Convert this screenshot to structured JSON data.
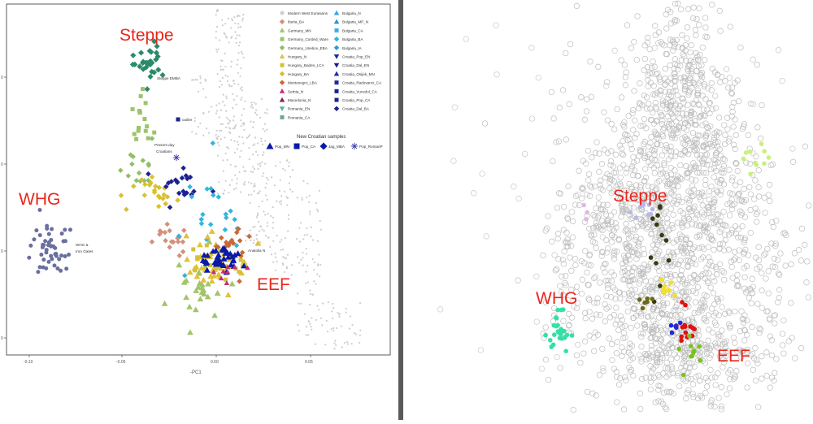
{
  "left_chart": {
    "group_labels": [
      {
        "text": "Steppe",
        "key": "steppe"
      },
      {
        "text": "WHG",
        "key": "whg"
      },
      {
        "text": "EEF",
        "key": "eef"
      }
    ],
    "annotations": [
      {
        "text": "Steppe EMBA",
        "key": "steppe_emba"
      },
      {
        "text": "outlier",
        "key": "outlier"
      },
      {
        "text": "Present day",
        "key": "present1"
      },
      {
        "text": "Croatians",
        "key": "present2"
      },
      {
        "text": "WHG &",
        "key": "whg1"
      },
      {
        "text": "Iron Gates",
        "key": "whg2"
      },
      {
        "text": "Anatolia N",
        "key": "anatolia"
      }
    ],
    "x_ticks": [
      "-0.10",
      "-0.05",
      "0.00",
      "0.05"
    ],
    "x_label": "-PC1",
    "y_ticks": [
      "0",
      "0",
      "0",
      "0"
    ],
    "legend": {
      "col1": [
        {
          "label": "Modern West Eurasians",
          "shape": "dot",
          "color": "#cfcfcf"
        },
        {
          "label": "Iberia_BA",
          "shape": "diamond",
          "color": "#d4907a"
        },
        {
          "label": "Germany_MN",
          "shape": "triangle",
          "color": "#a3c46a"
        },
        {
          "label": "Germany_Corded_Ware",
          "shape": "square",
          "color": "#9cc46a"
        },
        {
          "label": "Germany_Unetice_EBA",
          "shape": "diamond",
          "color": "#8fbf6a"
        },
        {
          "label": "Hungary_N",
          "shape": "triangle",
          "color": "#e0c23a"
        },
        {
          "label": "Hungary_Baden_LCA",
          "shape": "square",
          "color": "#d6c037"
        },
        {
          "label": "Hungary_BA",
          "shape": "diamond",
          "color": "#d8c030"
        },
        {
          "label": "Montenegro_LBA",
          "shape": "diamond",
          "color": "#c76a3a"
        },
        {
          "label": "Serbia_N",
          "shape": "triangle",
          "color": "#c22e7c"
        },
        {
          "label": "Macedonia_N",
          "shape": "triangle",
          "color": "#8a1d5c"
        },
        {
          "label": "Romania_EN",
          "shape": "triangle-down",
          "color": "#5db39a"
        },
        {
          "label": "Romania_CA",
          "shape": "square",
          "color": "#6aa79a"
        }
      ],
      "col2": [
        {
          "label": "Bulgaria_N",
          "shape": "triangle",
          "color": "#3aa3d9"
        },
        {
          "label": "Bulgaria_MP_N",
          "shape": "triangle",
          "color": "#2a93c9"
        },
        {
          "label": "Bulgaria_CA",
          "shape": "square",
          "color": "#3ab0e0"
        },
        {
          "label": "Bulgaria_BA",
          "shape": "diamond",
          "color": "#33b5dd"
        },
        {
          "label": "Bulgaria_IA",
          "shape": "diamond",
          "color": "#28a0d2"
        },
        {
          "label": "Croatia_Pop_EN",
          "shape": "triangle-down",
          "color": "#1a2a9a"
        },
        {
          "label": "Croatia_Dal_EN",
          "shape": "triangle-down",
          "color": "#1a1a8a"
        },
        {
          "label": "Croatia_Osijek_MN",
          "shape": "triangle",
          "color": "#1a2ea8"
        },
        {
          "label": "Croatia_Radovanci_CA",
          "shape": "square",
          "color": "#1e2a9c"
        },
        {
          "label": "Croatia_Vucedol_CA",
          "shape": "square",
          "color": "#1a1f8f"
        },
        {
          "label": "Croatia_Pop_CA",
          "shape": "square",
          "color": "#1a2388"
        },
        {
          "label": "Croatia_Dal_BA",
          "shape": "diamond",
          "color": "#1d2190"
        }
      ],
      "new_title": "New Croatian samples",
      "new_items": [
        {
          "label": "Pop_MN",
          "shape": "triangle",
          "color": "#0a1aa8"
        },
        {
          "label": "Pop_CA",
          "shape": "square",
          "color": "#0a1aa8"
        },
        {
          "label": "Jag_MBA",
          "shape": "diamond",
          "color": "#0a1aa8"
        },
        {
          "label": "Pop_RomanP",
          "shape": "star",
          "color": "#3a3aa8"
        }
      ]
    }
  },
  "right_chart": {
    "group_labels": [
      {
        "text": "Steppe",
        "key": "steppe"
      },
      {
        "text": "WHG",
        "key": "whg"
      },
      {
        "text": "EEF",
        "key": "eef"
      }
    ]
  },
  "colors": {
    "label_red": "#e8261c",
    "background_cloud": "#bdbdbd",
    "divider": "#5a5a5a"
  },
  "chart_data": [
    {
      "type": "scatter",
      "title": "",
      "xlabel": "-PC1",
      "ylabel": "",
      "xlim": [
        -0.12,
        0.12
      ],
      "grid": false,
      "legend_position": "top-right",
      "series": [
        {
          "name": "Modern West Eurasians",
          "cluster": "background-cloud"
        },
        {
          "name": "Steppe EMBA",
          "center": [
            -0.037,
            0.18
          ]
        },
        {
          "name": "WHG & Iron Gates",
          "center": [
            -0.08,
            -0.08
          ]
        },
        {
          "name": "Anatolia N",
          "center": [
            0.0,
            -0.085
          ]
        }
      ]
    },
    {
      "type": "scatter",
      "title": "",
      "xlabel": "",
      "ylabel": "",
      "grid": false,
      "series": [
        {
          "name": "Steppe"
        },
        {
          "name": "WHG"
        },
        {
          "name": "EEF"
        }
      ]
    }
  ]
}
